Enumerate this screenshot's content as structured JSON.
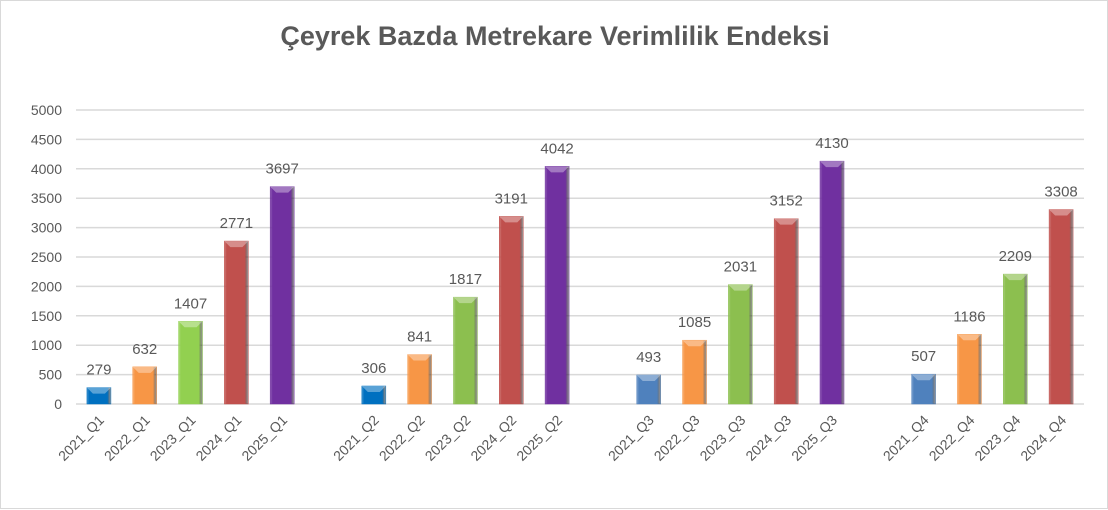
{
  "chart_data": {
    "type": "bar",
    "title": "Çeyrek Bazda Metrekare Verimlilik Endeksi",
    "xlabel": "",
    "ylabel": "",
    "ylim": [
      0,
      5000
    ],
    "yticks": [
      0,
      500,
      1000,
      1500,
      2000,
      2500,
      3000,
      3500,
      4000,
      4500,
      5000
    ],
    "grid": true,
    "legend": "none",
    "categories": [
      "2021_Q1",
      "2022_Q1",
      "2023_Q1",
      "2024_Q1",
      "2025_Q1",
      "",
      "2021_Q2",
      "2022_Q2",
      "2023_Q2",
      "2024_Q2",
      "2025_Q2",
      "",
      "2021_Q3",
      "2022_Q3",
      "2023_Q3",
      "2024_Q3",
      "2025_Q3",
      "",
      "2021_Q4",
      "2022_Q4",
      "2023_Q4",
      "2024_Q4"
    ],
    "values": [
      279,
      632,
      1407,
      2771,
      3697,
      null,
      306,
      841,
      1817,
      3191,
      4042,
      null,
      493,
      1085,
      2031,
      3152,
      4130,
      null,
      507,
      1186,
      2209,
      3308
    ],
    "colors": [
      "#0070c0",
      "#f79646",
      "#92d050",
      "#c0504d",
      "#7030a0",
      null,
      "#0070c0",
      "#f79646",
      "#8cbf4f",
      "#c0504d",
      "#7030a0",
      null,
      "#4f81bd",
      "#f79646",
      "#8cbf4f",
      "#c0504d",
      "#7030a0",
      null,
      "#4f81bd",
      "#f79646",
      "#8cbf4f",
      "#c0504d"
    ]
  }
}
